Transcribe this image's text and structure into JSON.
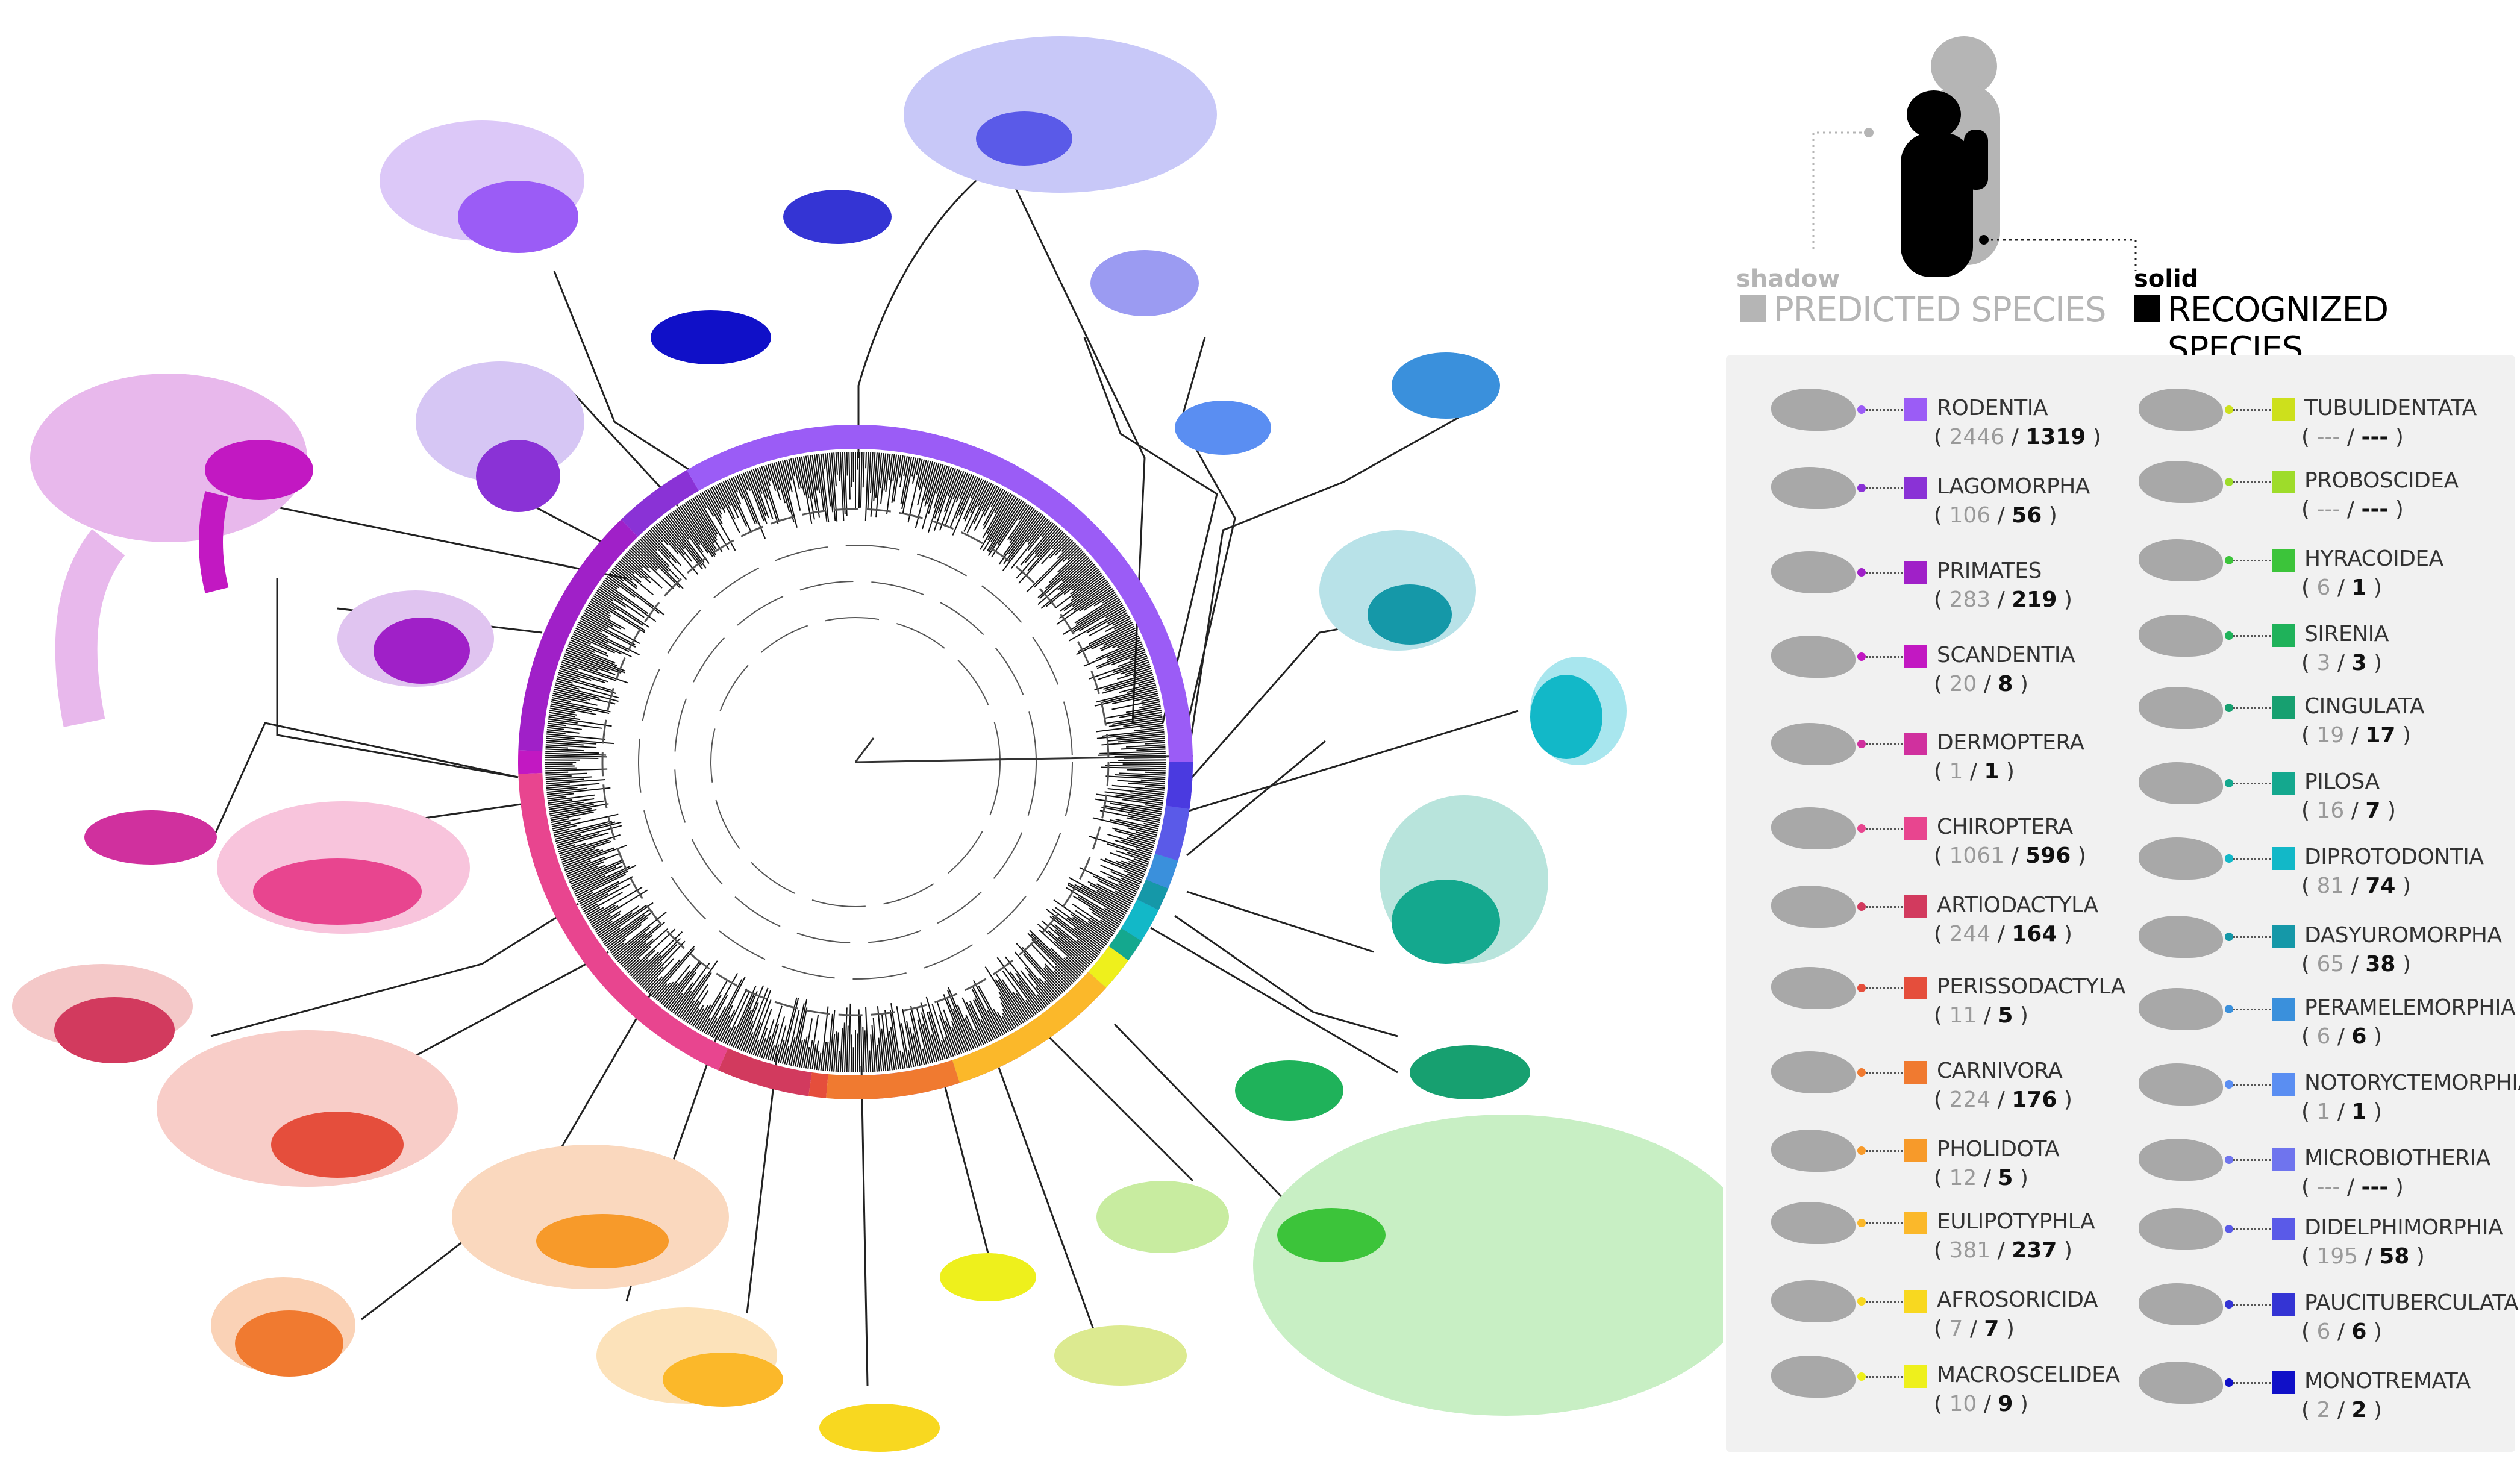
{
  "legend": {
    "shadow_label": "shadow",
    "predicted_label": "PREDICTED SPECIES",
    "solid_label": "solid",
    "recognized_label": "RECOGNIZED SPECIES",
    "shadow_color": "#b5b5b5",
    "solid_color": "#000000"
  },
  "orders": [
    {
      "name": "RODENTIA",
      "predicted": "2446",
      "recognized": "1319",
      "color": "#9b5cf6"
    },
    {
      "name": "LAGOMORPHA",
      "predicted": "106",
      "recognized": "56",
      "color": "#8a32d6"
    },
    {
      "name": "PRIMATES",
      "predicted": "283",
      "recognized": "219",
      "color": "#a020c8"
    },
    {
      "name": "SCANDENTIA",
      "predicted": "20",
      "recognized": "8",
      "color": "#c218c2"
    },
    {
      "name": "DERMOPTERA",
      "predicted": "1",
      "recognized": "1",
      "color": "#d0309e"
    },
    {
      "name": "CHIROPTERA",
      "predicted": "1061",
      "recognized": "596",
      "color": "#e8458f"
    },
    {
      "name": "ARTIODACTYLA",
      "predicted": "244",
      "recognized": "164",
      "color": "#d23a5e"
    },
    {
      "name": "PERISSODACTYLA",
      "predicted": "11",
      "recognized": "5",
      "color": "#e54e3c"
    },
    {
      "name": "CARNIVORA",
      "predicted": "224",
      "recognized": "176",
      "color": "#f07a30"
    },
    {
      "name": "PHOLIDOTA",
      "predicted": "12",
      "recognized": "5",
      "color": "#f79a2a"
    },
    {
      "name": "EULIPOTYPHLA",
      "predicted": "381",
      "recognized": "237",
      "color": "#fbb82a"
    },
    {
      "name": "AFROSORICIDA",
      "predicted": "7",
      "recognized": "7",
      "color": "#f8d820"
    },
    {
      "name": "MACROSCELIDEA",
      "predicted": "10",
      "recognized": "9",
      "color": "#eef01c"
    },
    {
      "name": "TUBULIDENTATA",
      "predicted": "---",
      "recognized": "---",
      "color": "#cde01c"
    },
    {
      "name": "PROBOSCIDEA",
      "predicted": "---",
      "recognized": "---",
      "color": "#9edc2a"
    },
    {
      "name": "HYRACOIDEA",
      "predicted": "6",
      "recognized": "1",
      "color": "#3cc43a"
    },
    {
      "name": "SIRENIA",
      "predicted": "3",
      "recognized": "3",
      "color": "#1fb25a"
    },
    {
      "name": "CINGULATA",
      "predicted": "19",
      "recognized": "17",
      "color": "#17a070"
    },
    {
      "name": "PILOSA",
      "predicted": "16",
      "recognized": "7",
      "color": "#14a88e"
    },
    {
      "name": "DIPROTODONTIA",
      "predicted": "81",
      "recognized": "74",
      "color": "#12b8c8"
    },
    {
      "name": "DASYUROMORPHA",
      "predicted": "65",
      "recognized": "38",
      "color": "#1598a8"
    },
    {
      "name": "PERAMELEMORPHIA",
      "predicted": "6",
      "recognized": "6",
      "color": "#3a90dc"
    },
    {
      "name": "NOTORYCTEMORPHIA",
      "predicted": "1",
      "recognized": "1",
      "color": "#5a8ef2"
    },
    {
      "name": "MICROBIOTHERIA",
      "predicted": "---",
      "recognized": "---",
      "color": "#6f74ee"
    },
    {
      "name": "DIDELPHIMORPHIA",
      "predicted": "195",
      "recognized": "58",
      "color": "#5a5ae8"
    },
    {
      "name": "PAUCITUBERCULATA",
      "predicted": "6",
      "recognized": "6",
      "color": "#3434d4"
    },
    {
      "name": "MONOTREMATA",
      "predicted": "2",
      "recognized": "2",
      "color": "#1010c8"
    }
  ],
  "ring_arcs": [
    {
      "order": "RODENTIA",
      "from": -120,
      "to": 90,
      "color": "#9b5cf6"
    },
    {
      "order": "LAGOMORPHA",
      "from": -134,
      "to": -120,
      "color": "#8a32d6"
    },
    {
      "order": "PRIMATES",
      "from": -178,
      "to": -134,
      "color": "#a020c8"
    },
    {
      "order": "SCANDENTIA",
      "from": -182,
      "to": -178,
      "color": "#c218c2"
    },
    {
      "order": "CHIROPTERA",
      "from": -246,
      "to": -182,
      "color": "#e8458f"
    },
    {
      "order": "ARTIODACTYLA",
      "from": -262,
      "to": -246,
      "color": "#d23a5e"
    },
    {
      "order": "PERISSODACTYLA",
      "from": -265,
      "to": -262,
      "color": "#e54e3c"
    },
    {
      "order": "CARNIVORA",
      "from": -288,
      "to": -265,
      "color": "#f07a30"
    },
    {
      "order": "EULIPOTYPHLA",
      "from": -318,
      "to": -288,
      "color": "#fbb82a"
    },
    {
      "order": "MACROSCELIDEA",
      "from": -324,
      "to": -318,
      "color": "#eef01c"
    },
    {
      "order": "PILOSA",
      "from": -328,
      "to": -324,
      "color": "#14a88e"
    },
    {
      "order": "DIPROTODONTIA",
      "from": -334,
      "to": -328,
      "color": "#12b8c8"
    },
    {
      "order": "DASYUROMORPHA",
      "from": -338,
      "to": -334,
      "color": "#1598a8"
    },
    {
      "order": "PERAMELEMORPHIA",
      "from": -343,
      "to": -338,
      "color": "#3a90dc"
    },
    {
      "order": "DIDELPHIMORPHIA",
      "from": -352,
      "to": -343,
      "color": "#5a5ae8"
    },
    {
      "order": "MONOTREMATA",
      "from": -360,
      "to": -352,
      "color": "#4a3ae0"
    }
  ]
}
